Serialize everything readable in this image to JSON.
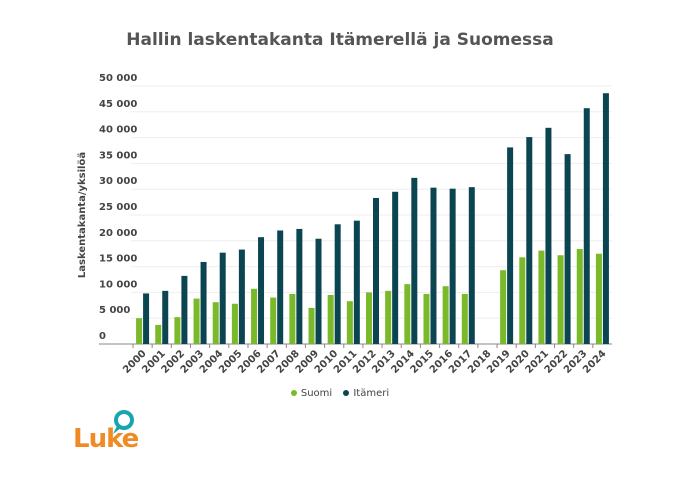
{
  "chart_data": {
    "type": "bar",
    "title": "Hallin laskentakanta Itämerellä ja Suomessa",
    "ylabel": "Laskentakanta/yksilöä",
    "xlabel": "",
    "ylim": [
      0,
      50000
    ],
    "yticks": [
      0,
      5000,
      10000,
      15000,
      20000,
      25000,
      30000,
      35000,
      40000,
      45000,
      50000
    ],
    "ytick_labels": [
      "0",
      "5 000",
      "10 000",
      "15 000",
      "20 000",
      "25 000",
      "30 000",
      "35 000",
      "40 000",
      "45 000",
      "50 000"
    ],
    "grid": true,
    "legend": "bottom",
    "categories": [
      "2000",
      "2001",
      "2002",
      "2003",
      "2004",
      "2005",
      "2006",
      "2007",
      "2008",
      "2009",
      "2010",
      "2011",
      "2012",
      "2013",
      "2014",
      "2015",
      "2016",
      "2017",
      "2018",
      "2019",
      "2020",
      "2021",
      "2022",
      "2023",
      "2024"
    ],
    "series": [
      {
        "name": "Suomi",
        "color": "#7ab929",
        "values": [
          5000,
          3700,
          5200,
          8800,
          8100,
          7800,
          10700,
          9000,
          9700,
          7000,
          9500,
          8300,
          10000,
          10300,
          11600,
          9700,
          11200,
          9700,
          null,
          14300,
          16800,
          18100,
          17200,
          18400,
          17500
        ]
      },
      {
        "name": "Itämeri",
        "color": "#0b4552",
        "values": [
          9800,
          10300,
          13200,
          15900,
          17700,
          18300,
          20700,
          22000,
          22300,
          20400,
          23200,
          23900,
          28300,
          29500,
          32200,
          30300,
          30100,
          30400,
          null,
          38100,
          40100,
          41900,
          36800,
          45700,
          48600
        ]
      }
    ]
  },
  "logo": {
    "text": "Luke",
    "color": "#f08a24",
    "bubble_color": "#1aa3b0"
  }
}
